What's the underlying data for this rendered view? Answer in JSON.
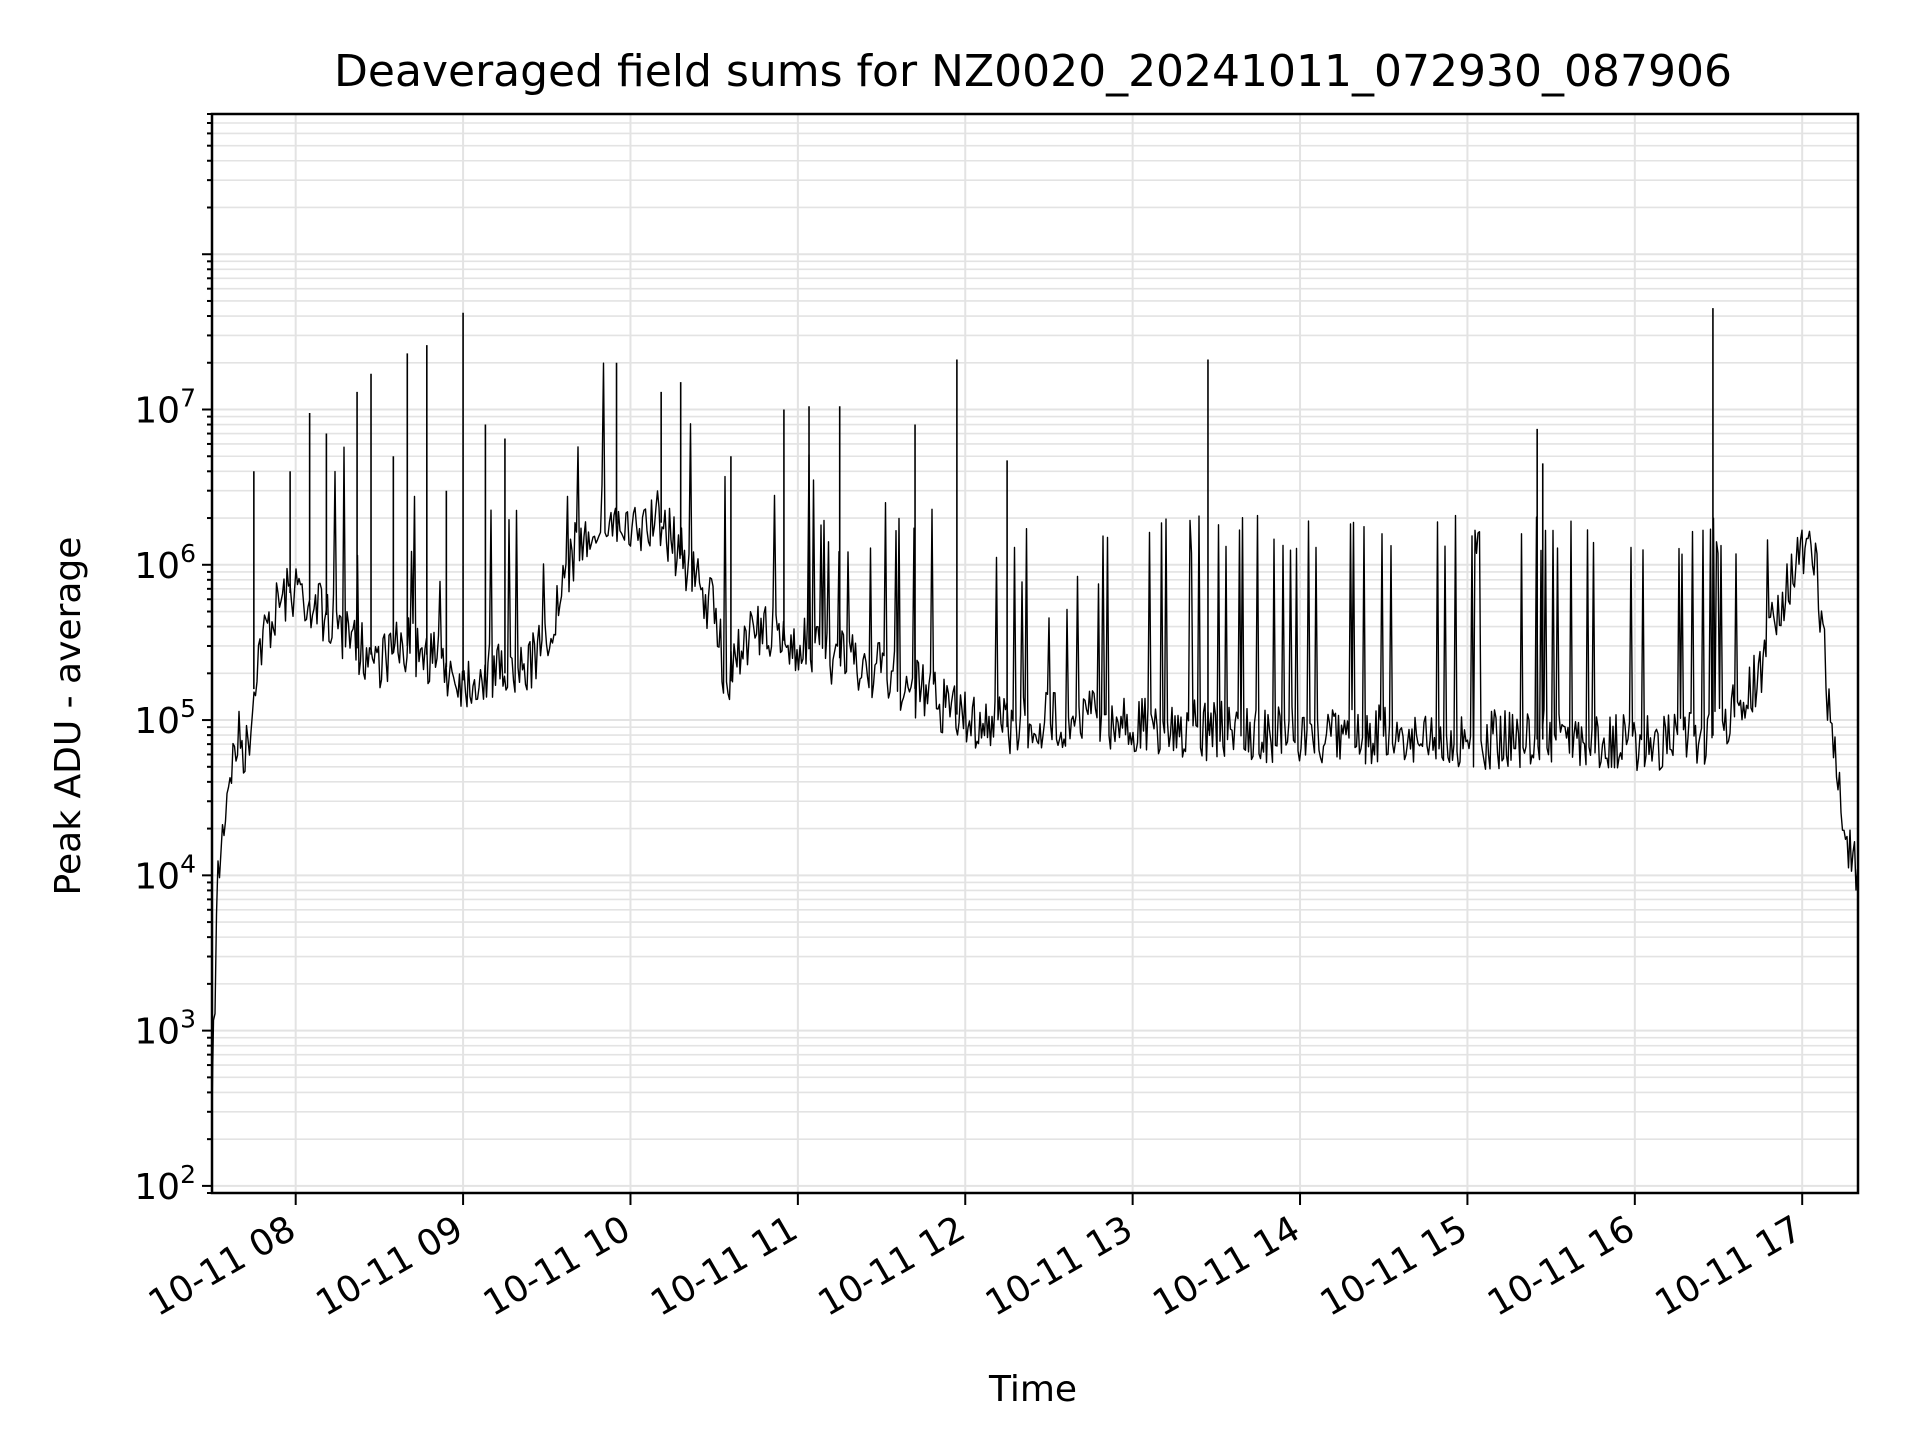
{
  "chart_data": {
    "type": "line",
    "title": "Deaveraged field sums for NZ0020_20241011_072930_087906",
    "xlabel": "Time",
    "ylabel": "Peak ADU - average",
    "yscale": "log",
    "ylim": [
      90,
      800000000
    ],
    "xlim": [
      "2024-10-11 07:30",
      "2024-10-11 17:20"
    ],
    "grid": true,
    "x_ticks": [
      "10-11 08",
      "10-11 09",
      "10-11 10",
      "10-11 11",
      "10-11 12",
      "10-11 13",
      "10-11 14",
      "10-11 15",
      "10-11 16",
      "10-11 17"
    ],
    "y_ticks": [
      {
        "base": "10",
        "exp": "2"
      },
      {
        "base": "10",
        "exp": "3"
      },
      {
        "base": "10",
        "exp": "4"
      },
      {
        "base": "10",
        "exp": "5"
      },
      {
        "base": "10",
        "exp": "6"
      },
      {
        "base": "10",
        "exp": "7"
      }
    ],
    "series": [
      {
        "color": "#000000",
        "points": [
          [
            "2024-10-11 07:30",
            300
          ],
          [
            "2024-10-11 07:32",
            9000
          ],
          [
            "2024-10-11 07:34",
            20000
          ],
          [
            "2024-10-11 07:36",
            45000
          ],
          [
            "2024-10-11 07:38",
            60000
          ],
          [
            "2024-10-11 07:40",
            80000
          ],
          [
            "2024-10-11 07:42",
            60000
          ],
          [
            "2024-10-11 07:44",
            100000
          ],
          [
            "2024-10-11 07:46",
            250000
          ],
          [
            "2024-10-11 07:50",
            400000
          ],
          [
            "2024-10-11 07:55",
            600000
          ],
          [
            "2024-10-11 08:00",
            700000
          ],
          [
            "2024-10-11 08:10",
            500000
          ],
          [
            "2024-10-11 08:20",
            300000
          ],
          [
            "2024-10-11 08:30",
            250000
          ],
          [
            "2024-10-11 08:40",
            300000
          ],
          [
            "2024-10-11 08:50",
            250000
          ],
          [
            "2024-10-11 09:00",
            180000
          ],
          [
            "2024-10-11 09:10",
            200000
          ],
          [
            "2024-10-11 09:20",
            200000
          ],
          [
            "2024-10-11 09:30",
            300000
          ],
          [
            "2024-10-11 09:40",
            1200000
          ],
          [
            "2024-10-11 09:50",
            2200000
          ],
          [
            "2024-10-11 10:00",
            1500000
          ],
          [
            "2024-10-11 10:10",
            2000000
          ],
          [
            "2024-10-11 10:20",
            1000000
          ],
          [
            "2024-10-11 10:30",
            500000
          ],
          [
            "2024-10-11 10:35",
            150000
          ],
          [
            "2024-10-11 10:40",
            350000
          ],
          [
            "2024-10-11 10:50",
            350000
          ],
          [
            "2024-10-11 11:00",
            300000
          ],
          [
            "2024-10-11 11:15",
            250000
          ],
          [
            "2024-10-11 11:30",
            200000
          ],
          [
            "2024-10-11 11:45",
            150000
          ],
          [
            "2024-10-11 12:00",
            100000
          ],
          [
            "2024-10-11 12:15",
            90000
          ],
          [
            "2024-10-11 12:30",
            100000
          ],
          [
            "2024-10-11 12:45",
            110000
          ],
          [
            "2024-10-11 13:00",
            90000
          ],
          [
            "2024-10-11 13:30",
            85000
          ],
          [
            "2024-10-11 14:00",
            80000
          ],
          [
            "2024-10-11 14:30",
            80000
          ],
          [
            "2024-10-11 15:00",
            75000
          ],
          [
            "2024-10-11 15:30",
            75000
          ],
          [
            "2024-10-11 16:00",
            70000
          ],
          [
            "2024-10-11 16:30",
            80000
          ],
          [
            "2024-10-11 16:45",
            200000
          ],
          [
            "2024-10-11 16:50",
            500000
          ],
          [
            "2024-10-11 17:00",
            1200000
          ],
          [
            "2024-10-11 17:05",
            1000000
          ],
          [
            "2024-10-11 17:10",
            100000
          ],
          [
            "2024-10-11 17:15",
            20000
          ],
          [
            "2024-10-11 17:20",
            9000
          ]
        ],
        "spikes": [
          [
            "2024-10-11 07:45",
            4000000
          ],
          [
            "2024-10-11 07:58",
            4000000
          ],
          [
            "2024-10-11 08:05",
            9500000
          ],
          [
            "2024-10-11 08:11",
            7000000
          ],
          [
            "2024-10-11 08:22",
            13000000
          ],
          [
            "2024-10-11 08:27",
            17000000
          ],
          [
            "2024-10-11 08:35",
            5000000
          ],
          [
            "2024-10-11 08:40",
            23000000
          ],
          [
            "2024-10-11 08:47",
            26000000
          ],
          [
            "2024-10-11 08:54",
            3000000
          ],
          [
            "2024-10-11 09:00",
            42000000
          ],
          [
            "2024-10-11 09:08",
            8000000
          ],
          [
            "2024-10-11 09:15",
            6500000
          ],
          [
            "2024-10-11 09:55",
            20000000
          ],
          [
            "2024-10-11 10:11",
            13000000
          ],
          [
            "2024-10-11 10:18",
            15000000
          ],
          [
            "2024-10-11 10:36",
            5000000
          ],
          [
            "2024-10-11 10:55",
            10000000
          ],
          [
            "2024-10-11 11:04",
            10500000
          ],
          [
            "2024-10-11 11:15",
            10500000
          ],
          [
            "2024-10-11 11:42",
            8000000
          ],
          [
            "2024-10-11 11:57",
            21000000
          ],
          [
            "2024-10-11 12:15",
            4700000
          ],
          [
            "2024-10-11 13:27",
            21000000
          ],
          [
            "2024-10-11 15:25",
            7500000
          ],
          [
            "2024-10-11 15:27",
            4500000
          ],
          [
            "2024-10-11 16:28",
            45000000
          ]
        ]
      }
    ]
  }
}
